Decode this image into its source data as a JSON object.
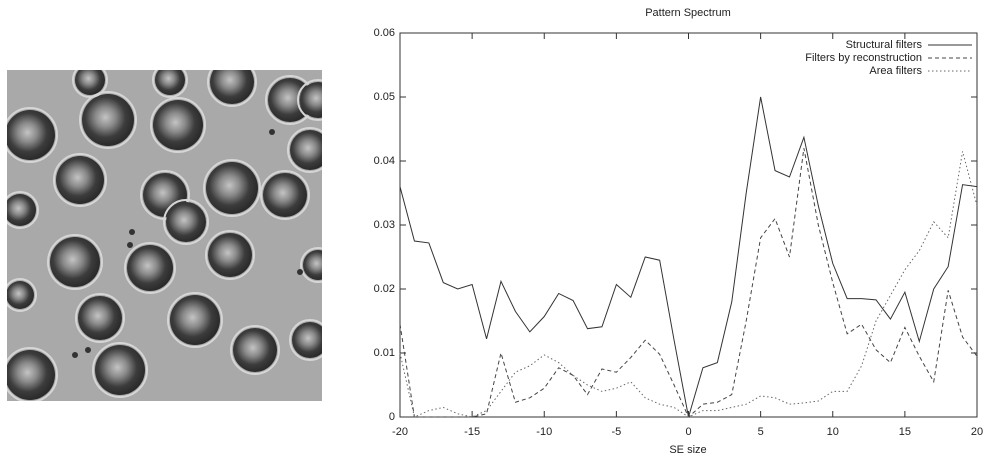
{
  "chart_data": {
    "type": "line",
    "title": "Pattern Spectrum",
    "x_label": "SE size",
    "x": [
      -20,
      -19,
      -18,
      -17,
      -16,
      -15,
      -14,
      -13,
      -12,
      -11,
      -10,
      -9,
      -8,
      -7,
      -6,
      -5,
      -4,
      -3,
      -2,
      -1,
      0,
      1,
      2,
      3,
      4,
      5,
      6,
      7,
      8,
      9,
      10,
      11,
      12,
      13,
      14,
      15,
      16,
      17,
      18,
      19,
      20
    ],
    "series": [
      {
        "name": "Structural filters",
        "color": "#333333",
        "dash": "solid",
        "values": [
          0.036,
          0.0275,
          0.0272,
          0.021,
          0.02,
          0.0207,
          0.0122,
          0.0212,
          0.0165,
          0.0133,
          0.0157,
          0.0193,
          0.0182,
          0.0138,
          0.0141,
          0.0207,
          0.0187,
          0.025,
          0.0245,
          0.012,
          0,
          0.0077,
          0.0085,
          0.018,
          0.035,
          0.05,
          0.0385,
          0.0375,
          0.0437,
          0.033,
          0.024,
          0.0185,
          0.0185,
          0.0183,
          0.0153,
          0.0195,
          0.0118,
          0.02,
          0.0235,
          0.0363,
          0.036
        ]
      },
      {
        "name": "Filters by reconstruction",
        "color": "#444444",
        "dash": "dashed",
        "values": [
          0.0145,
          0,
          0,
          0,
          0,
          0,
          0.0005,
          0.01,
          0.0023,
          0.003,
          0.0045,
          0.0077,
          0.0065,
          0.0035,
          0.0075,
          0.007,
          0.0093,
          0.012,
          0.0098,
          0.005,
          0,
          0.002,
          0.0023,
          0.0035,
          0.015,
          0.028,
          0.031,
          0.025,
          0.042,
          0.03,
          0.021,
          0.013,
          0.0145,
          0.0105,
          0.0085,
          0.014,
          0.0095,
          0.0055,
          0.0198,
          0.0125,
          0.0095
        ]
      },
      {
        "name": "Area filters",
        "color": "#666666",
        "dash": "dotted",
        "values": [
          0.01,
          0,
          0.001,
          0.0015,
          0.0005,
          0,
          0.001,
          0.004,
          0.007,
          0.008,
          0.0097,
          0.0085,
          0.0065,
          0.005,
          0.004,
          0.0045,
          0.0055,
          0.003,
          0.002,
          0.0015,
          0,
          0.001,
          0.001,
          0.0015,
          0.002,
          0.0033,
          0.003,
          0.002,
          0.0022,
          0.0025,
          0.004,
          0.004,
          0.008,
          0.015,
          0.019,
          0.023,
          0.026,
          0.0305,
          0.028,
          0.0415,
          0.033
        ]
      }
    ],
    "xlim": [
      -20,
      20
    ],
    "xticks": [
      -20,
      -15,
      -10,
      -5,
      0,
      5,
      10,
      15,
      20
    ],
    "ylim": [
      0,
      0.06
    ],
    "yticks": [
      0,
      0.01,
      0.02,
      0.03,
      0.04,
      0.05,
      0.06
    ],
    "legend": "top-right",
    "grid": false
  }
}
